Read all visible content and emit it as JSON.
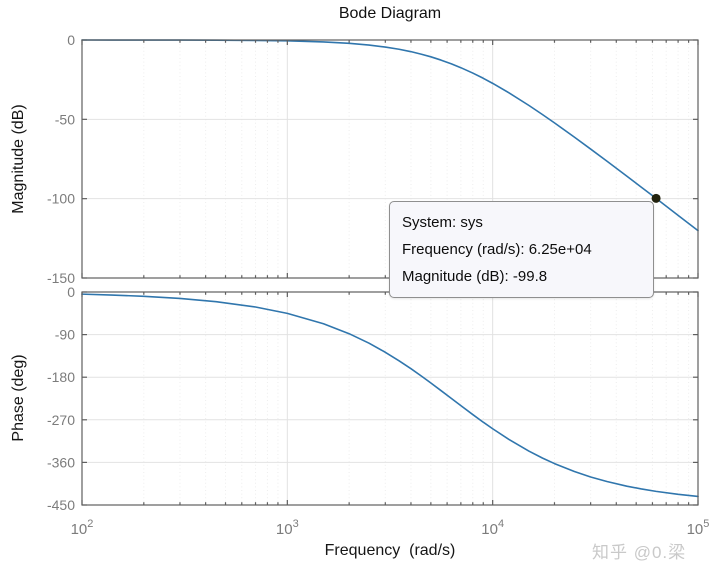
{
  "title": "Bode Diagram",
  "watermark": "知乎 @0.梁",
  "tooltip": {
    "lines": [
      "System: sys",
      "Frequency (rad/s): 6.25e+04",
      "Magnitude (dB): -99.8"
    ]
  },
  "colors": {
    "curve": "#3076ad",
    "marker": "#22220e",
    "grid_major": "#e2e2e2",
    "grid_minor": "#ededed",
    "axis": "#5f5f5f",
    "tick_label": "#7c7c7c",
    "tooltip_bg": "#f7f7fb",
    "tooltip_border": "#8f8f8f",
    "watermark": "#c9c9c9"
  },
  "chart_data": [
    {
      "type": "line",
      "title": "Bode Diagram",
      "ylabel": "Magnitude (dB)",
      "xscale": "log",
      "xlim": [
        100,
        100000
      ],
      "ylim": [
        -150,
        0
      ],
      "yticks": [
        0,
        -50,
        -100,
        -150
      ],
      "grid": true,
      "x": [
        100,
        140,
        200,
        300,
        450,
        700,
        1000,
        1500,
        2000,
        2500,
        3000,
        3500,
        4000,
        4500,
        5000,
        5600,
        6300,
        7000,
        8000,
        9000,
        10000,
        12000,
        15000,
        17500,
        20000,
        25000,
        30000,
        36000,
        45000,
        53000,
        62500,
        80000,
        100000
      ],
      "y": [
        0,
        -0.01,
        -0.02,
        -0.05,
        -0.11,
        -0.27,
        -0.54,
        -1.2,
        -2.09,
        -3.18,
        -4.44,
        -5.84,
        -7.35,
        -8.96,
        -10.6,
        -12.65,
        -15.05,
        -17.46,
        -20.85,
        -24.12,
        -27.33,
        -33.27,
        -41.2,
        -47.02,
        -52.25,
        -61.19,
        -68.75,
        -76.34,
        -85.8,
        -92.78,
        -99.8,
        -110.52,
        -120.17
      ],
      "marker_point": {
        "x": 62500,
        "y": -99.8
      }
    },
    {
      "type": "line",
      "ylabel": "Phase (deg)",
      "xlabel": "Frequency  (rad/s)",
      "xscale": "log",
      "xlim": [
        100,
        100000
      ],
      "ylim": [
        -450,
        0
      ],
      "yticks": [
        0,
        -90,
        -180,
        -270,
        -360,
        -450
      ],
      "xticks": [
        100,
        1000,
        10000,
        100000
      ],
      "xtick_base": "10",
      "xtick_exponents": [
        "2",
        "3",
        "4",
        "5"
      ],
      "grid": true,
      "x": [
        100,
        140,
        200,
        300,
        450,
        700,
        1000,
        1500,
        2000,
        2500,
        3000,
        3500,
        4000,
        4500,
        5000,
        5600,
        6300,
        7000,
        8000,
        9000,
        10000,
        12000,
        15000,
        17500,
        20000,
        25000,
        30000,
        36000,
        45000,
        53000,
        62500,
        80000,
        100000
      ],
      "y": [
        -4.5,
        -6.4,
        -9.1,
        -13.6,
        -20.4,
        -31.7,
        -45.2,
        -67.0,
        -88.1,
        -108.2,
        -127.3,
        -145.3,
        -162.0,
        -177.7,
        -192.2,
        -208.2,
        -225.0,
        -240.1,
        -258.9,
        -275.1,
        -288.9,
        -311.5,
        -336.1,
        -351.0,
        -362.5,
        -379.3,
        -390.8,
        -400.4,
        -410.2,
        -416.1,
        -421.2,
        -427.5,
        -432.0
      ]
    }
  ]
}
